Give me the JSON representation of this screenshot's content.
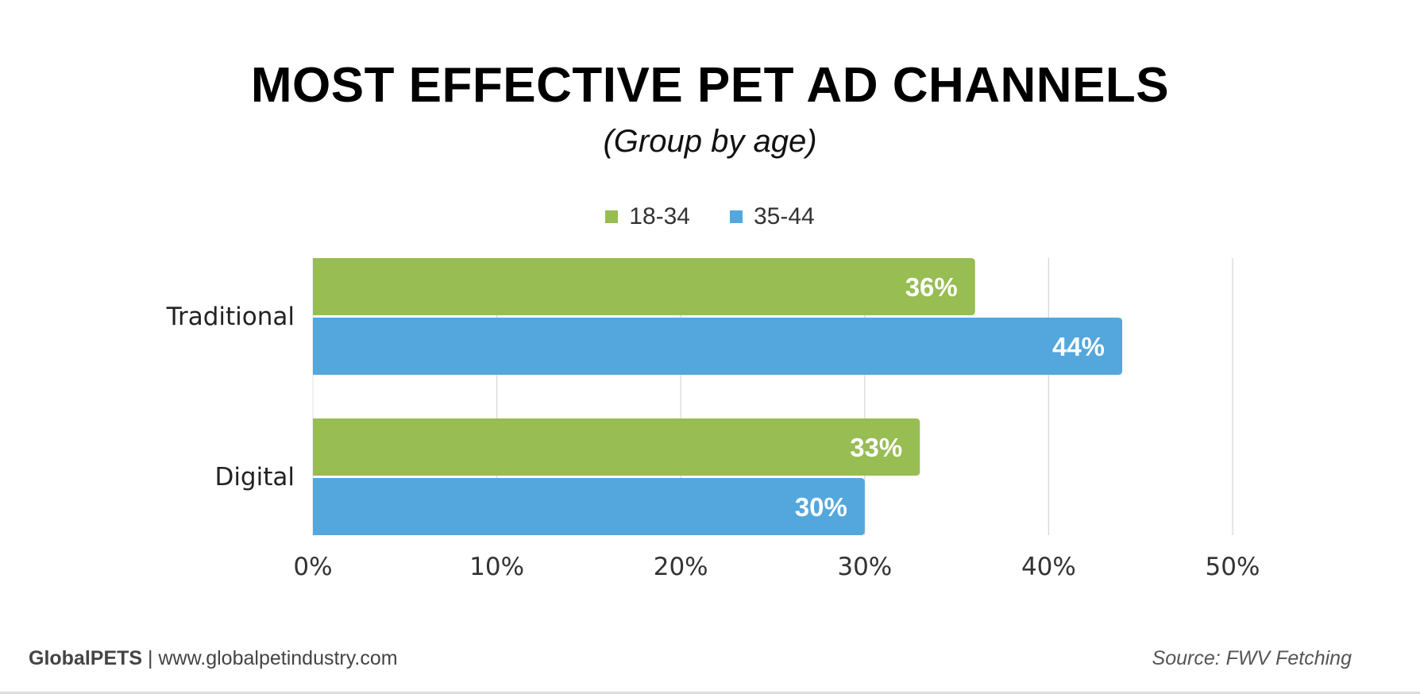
{
  "chart_data": {
    "type": "bar",
    "orientation": "horizontal",
    "title": "MOST EFFECTIVE PET AD CHANNELS",
    "subtitle": "(Group by age)",
    "categories": [
      "Traditional",
      "Digital"
    ],
    "series": [
      {
        "name": "18-34",
        "color": "#97bd53",
        "values": [
          36,
          33
        ],
        "labels": [
          "36%",
          "33%"
        ]
      },
      {
        "name": "35-44",
        "color": "#54a7dc",
        "values": [
          44,
          30
        ],
        "labels": [
          "44%",
          "30%"
        ]
      }
    ],
    "xlim": [
      0,
      50
    ],
    "xticks": [
      "0%",
      "10%",
      "20%",
      "30%",
      "40%",
      "50%"
    ],
    "grid": true,
    "legend": "top-center"
  },
  "footer": {
    "brand": "GlobalPETS",
    "separator": "|",
    "url": "www.globalpetindustry.com",
    "source": "Source: FWV Fetching"
  }
}
